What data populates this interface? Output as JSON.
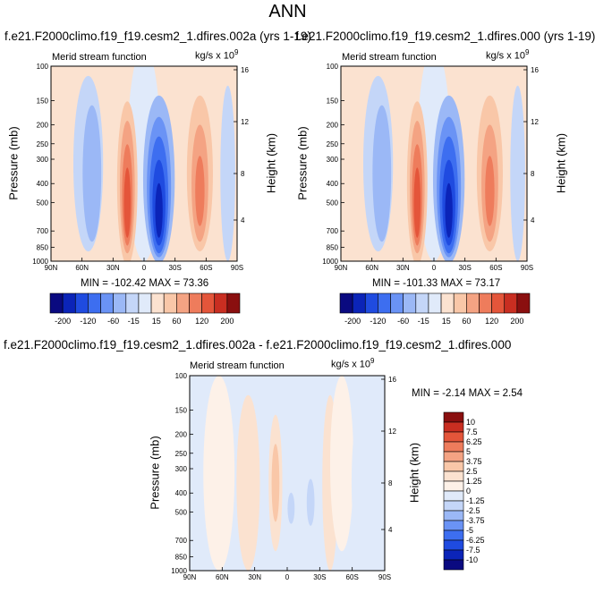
{
  "page": {
    "title": "ANN"
  },
  "panels": {
    "p1": {
      "title": "f.e21.F2000climo.f19_f19.cesm2_1.dfires.002a (yrs 1-19)",
      "label": "Merid stream function",
      "units": "kg/s x 10",
      "units_exp": "9",
      "minmax": "MIN = -102.42  MAX = 73.36"
    },
    "p2": {
      "title": "f.e21.F2000climo.f19_f19.cesm2_1.dfires.000 (yrs 1-19)",
      "label": "Merid stream function",
      "units": "kg/s x 10",
      "units_exp": "9",
      "minmax": "MIN = -101.33  MAX = 73.17"
    },
    "p3": {
      "title": "f.e21.F2000climo.f19_f19.cesm2_1.dfires.002a - f.e21.F2000climo.f19_f19.cesm2_1.dfires.000",
      "label": "Merid stream function",
      "units": "kg/s x 10",
      "units_exp": "9",
      "minmax": "MIN = -2.14  MAX =  2.54"
    }
  },
  "axes": {
    "ylabel": "Pressure (mb)",
    "ylabel_right": "Height (km)",
    "pressure_ticks": [
      "100",
      "150",
      "200",
      "250",
      "300",
      "400",
      "500",
      "700",
      "850",
      "1000"
    ],
    "height_ticks": [
      "16",
      "12",
      "8",
      "4"
    ],
    "lat_ticks": [
      "90N",
      "60N",
      "30N",
      "0",
      "30S",
      "60S",
      "90S"
    ]
  },
  "colorbar_top": {
    "labels": [
      "-200",
      "-120",
      "-60",
      "-15",
      "15",
      "60",
      "120",
      "200"
    ],
    "colors": [
      "#0a0a80",
      "#0b24b8",
      "#1f4be0",
      "#3d6ef0",
      "#6a93f5",
      "#9bb8f6",
      "#c4d6f8",
      "#e0eafa",
      "#fbe2d0",
      "#f9c7a8",
      "#f4a383",
      "#ee7c5c",
      "#e4553a",
      "#c92e21",
      "#8a0f0f"
    ]
  },
  "colorbar_diff": {
    "labels": [
      "10",
      "7.5",
      "6.25",
      "5",
      "3.75",
      "2.5",
      "1.25",
      "0",
      "-1.25",
      "-2.5",
      "-3.75",
      "-5",
      "-6.25",
      "-7.5",
      "-10"
    ],
    "colors": [
      "#8a0f0f",
      "#c92e21",
      "#e4553a",
      "#ee7c5c",
      "#f4a383",
      "#f9c7a8",
      "#fbe2d0",
      "#fdf1e8",
      "#e0eafa",
      "#c4d6f8",
      "#9bb8f6",
      "#6a93f5",
      "#3d6ef0",
      "#1f4be0",
      "#0b24b8",
      "#0a0a80"
    ]
  },
  "chart_data": [
    {
      "type": "heatmap",
      "title": "f.e21.F2000climo.f19_f19.cesm2_1.dfires.002a (yrs 1-19)",
      "xlabel": "",
      "ylabel": "Pressure (mb)",
      "ylabel_right": "Height (km)",
      "x_ticks": [
        "90N",
        "60N",
        "30N",
        "0",
        "30S",
        "60S",
        "90S"
      ],
      "y_ticks": [
        100,
        150,
        200,
        250,
        300,
        400,
        500,
        700,
        850,
        1000
      ],
      "contour_levels": [
        -200,
        -120,
        -60,
        -15,
        15,
        60,
        120,
        200
      ],
      "min": -102.42,
      "max": 73.36,
      "units": "kg/s x 10^9"
    },
    {
      "type": "heatmap",
      "title": "f.e21.F2000climo.f19_f19.cesm2_1.dfires.000 (yrs 1-19)",
      "xlabel": "",
      "ylabel": "Pressure (mb)",
      "ylabel_right": "Height (km)",
      "x_ticks": [
        "90N",
        "60N",
        "30N",
        "0",
        "30S",
        "60S",
        "90S"
      ],
      "y_ticks": [
        100,
        150,
        200,
        250,
        300,
        400,
        500,
        700,
        850,
        1000
      ],
      "contour_levels": [
        -200,
        -120,
        -60,
        -15,
        15,
        60,
        120,
        200
      ],
      "min": -101.33,
      "max": 73.17,
      "units": "kg/s x 10^9"
    },
    {
      "type": "heatmap",
      "title": "f.e21.F2000climo.f19_f19.cesm2_1.dfires.002a - f.e21.F2000climo.f19_f19.cesm2_1.dfires.000",
      "xlabel": "",
      "ylabel": "Pressure (mb)",
      "ylabel_right": "Height (km)",
      "x_ticks": [
        "90N",
        "60N",
        "30N",
        "0",
        "30S",
        "60S",
        "90S"
      ],
      "y_ticks": [
        100,
        150,
        200,
        250,
        300,
        400,
        500,
        700,
        850,
        1000
      ],
      "contour_levels": [
        -10,
        -7.5,
        -6.25,
        -5,
        -3.75,
        -2.5,
        -1.25,
        0,
        1.25,
        2.5,
        3.75,
        5,
        6.25,
        7.5,
        10
      ],
      "min": -2.14,
      "max": 2.54,
      "units": "kg/s x 10^9"
    }
  ]
}
